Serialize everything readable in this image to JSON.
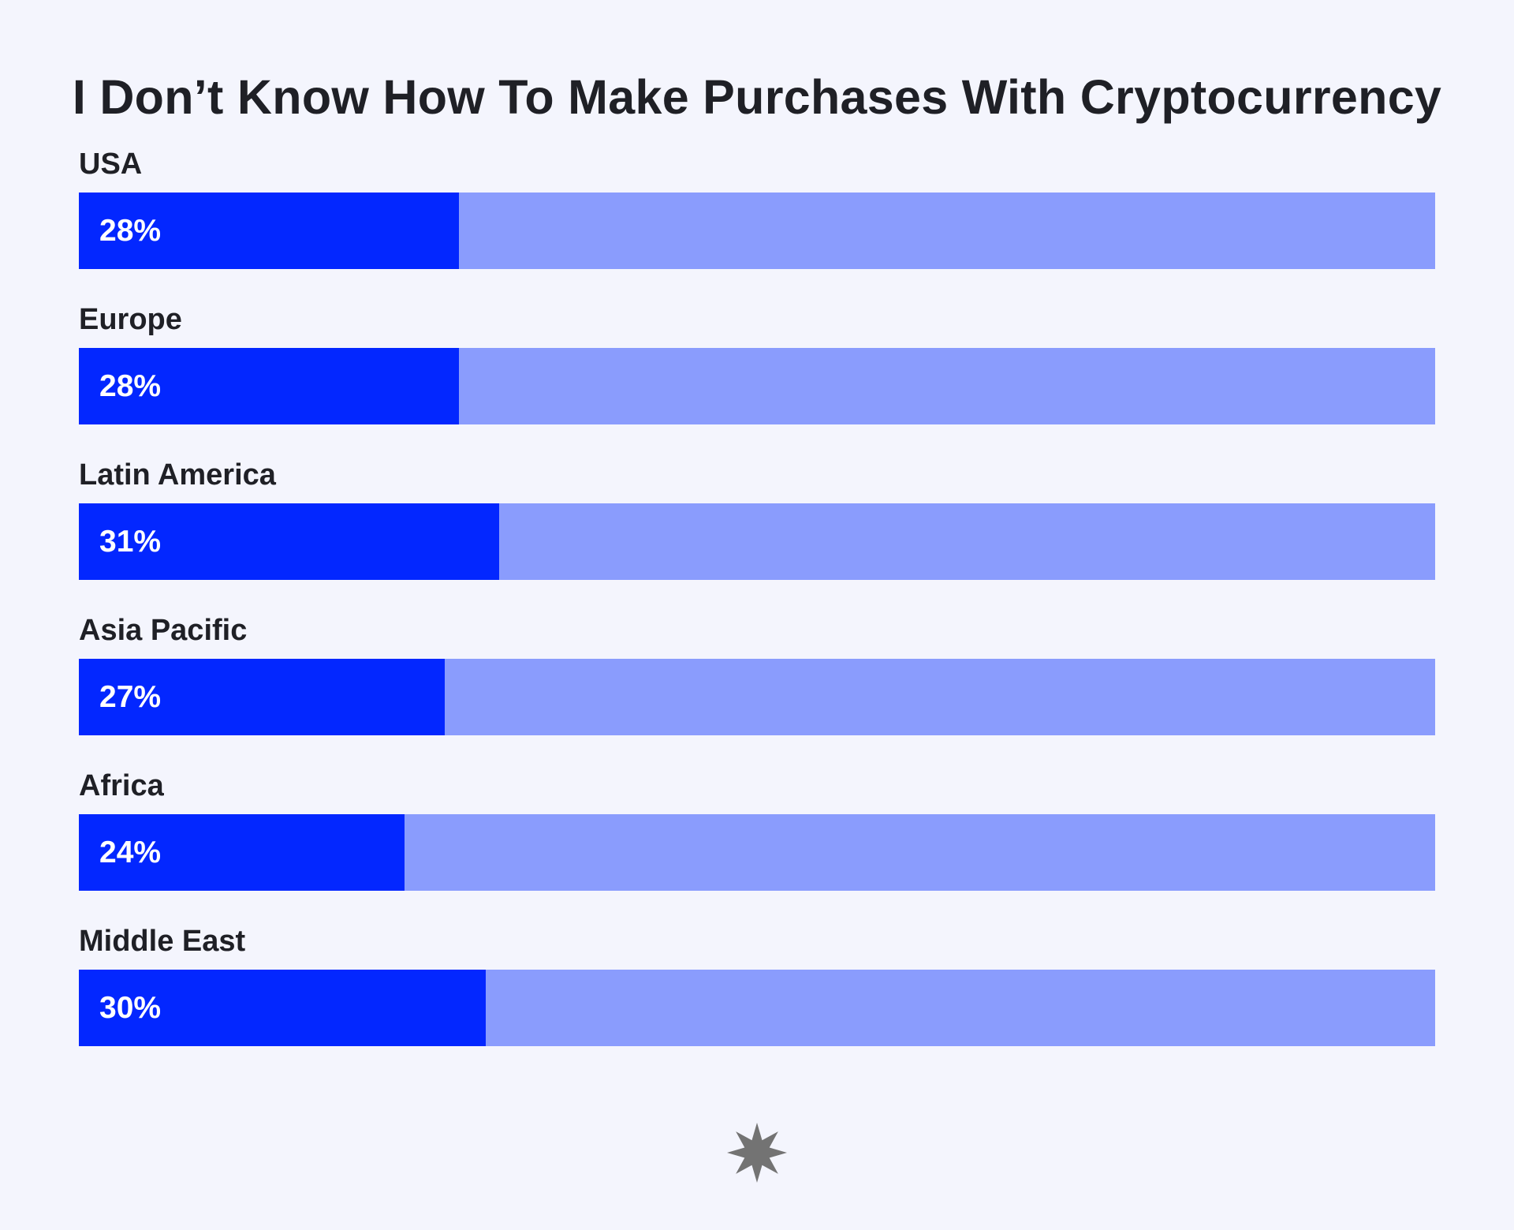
{
  "chart_data": {
    "type": "bar",
    "orientation": "horizontal",
    "title": "I Don’t Know How To Make Purchases With Cryptocurrency",
    "categories": [
      "USA",
      "Europe",
      "Latin America",
      "Asia Pacific",
      "Africa",
      "Middle East"
    ],
    "values": [
      28,
      28,
      31,
      27,
      24,
      30
    ],
    "value_labels": [
      "28%",
      "28%",
      "31%",
      "27%",
      "24%",
      "30%"
    ],
    "value_max": 100,
    "xlabel": "",
    "ylabel": "",
    "grid": false,
    "legend": "none"
  },
  "colors": {
    "background": "#f4f5fd",
    "bar_fill": "#0327ff",
    "bar_track": "#8a9cfd",
    "text": "#1f2026",
    "value_text": "#ffffff",
    "logo": "#737373"
  },
  "logo": {
    "icon": "eight-point-star-icon"
  }
}
